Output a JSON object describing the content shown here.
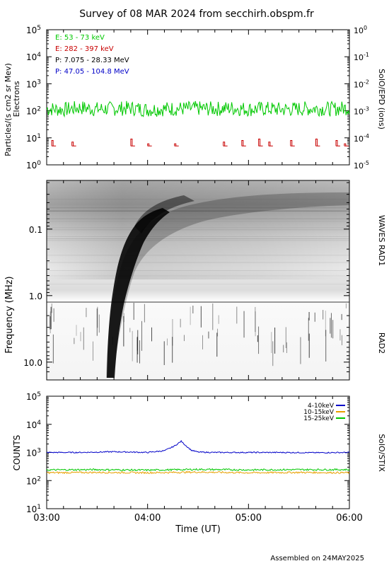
{
  "title": "Survey of 08 MAR 2024 from secchirh.obspm.fr",
  "footer": "Assembled on 24MAY2025",
  "chart_data": [
    {
      "id": "epd",
      "type": "line",
      "ylabel_left": "Particles/(s cm2 sr Mev)",
      "ylabel_left2": "Electrons",
      "ylabel_right": "SolO/EPD (ions)",
      "yscale": "log",
      "ylim_left": [
        1,
        100000
      ],
      "ylim_right": [
        1e-05,
        10
      ],
      "yticks_left": [
        "10^0",
        "10^1",
        "10^2",
        "10^3",
        "10^4",
        "10^5"
      ],
      "yticks_right": [
        "10^-5",
        "10^-4",
        "10^-3",
        "10^-2",
        "10^-1",
        "10^0"
      ],
      "xlim": [
        "03:00",
        "06:00"
      ],
      "legend": [
        {
          "label": "E: 53 - 73 keV",
          "color": "#00c800"
        },
        {
          "label": "E: 282 - 397 keV",
          "color": "#c80000"
        },
        {
          "label": "P: 7.075 - 28.33 MeV",
          "color": "#000000"
        },
        {
          "label": "P: 47.05 - 104.8 MeV",
          "color": "#0000c8"
        }
      ],
      "series": [
        {
          "name": "E: 53 - 73 keV",
          "color": "#00c800",
          "x_minutes": [
            0,
            10,
            20,
            30,
            40,
            50,
            60,
            70,
            80,
            90,
            100,
            110,
            120,
            130,
            140,
            150,
            160,
            170,
            180
          ],
          "y": [
            120,
            110,
            130,
            115,
            120,
            125,
            110,
            118,
            120,
            122,
            118,
            125,
            115,
            120,
            112,
            118,
            122,
            116,
            130
          ]
        },
        {
          "name": "E: 282 - 397 keV",
          "color": "#c80000",
          "x_minutes": [
            3,
            15,
            50,
            60,
            76,
            105,
            116,
            126,
            132,
            145,
            160,
            172,
            177
          ],
          "y": [
            8,
            7,
            9,
            6,
            6,
            7,
            8,
            9,
            7,
            8,
            9,
            8,
            6
          ]
        }
      ]
    },
    {
      "id": "waves",
      "type": "heatmap",
      "ylabel": "Frequency (MHz)",
      "label_top": "WAVES RAD1",
      "label_bottom": "RAD2",
      "yscale": "log",
      "ylim": [
        0.016,
        16
      ],
      "yticks": [
        "0.1",
        "1.0",
        "10.0"
      ],
      "xlim": [
        "03:00",
        "06:00"
      ]
    },
    {
      "id": "stix",
      "type": "line",
      "ylabel": "COUNTS",
      "ylabel_right": "SolO/STIX",
      "xlabel": "Time (UT)",
      "yscale": "log",
      "ylim": [
        10,
        100000
      ],
      "yticks": [
        "10^1",
        "10^2",
        "10^3",
        "10^4",
        "10^5"
      ],
      "xticks": [
        "03:00",
        "04:00",
        "05:00",
        "06:00"
      ],
      "series": [
        {
          "name": "4-10keV",
          "color": "#0000c8",
          "x_minutes": [
            0,
            20,
            40,
            60,
            70,
            76,
            80,
            83,
            86,
            90,
            100,
            120,
            140,
            160,
            180
          ],
          "y": [
            1000,
            1000,
            1060,
            1000,
            1150,
            1700,
            2500,
            1700,
            1200,
            1030,
            1000,
            1000,
            1000,
            980,
            1000
          ]
        },
        {
          "name": "10-15keV",
          "color": "#e8a000",
          "x_minutes": [
            0,
            30,
            60,
            90,
            120,
            150,
            180
          ],
          "y": [
            190,
            195,
            190,
            200,
            190,
            195,
            190
          ]
        },
        {
          "name": "15-25keV",
          "color": "#00c800",
          "x_minutes": [
            0,
            30,
            60,
            90,
            120,
            150,
            180
          ],
          "y": [
            240,
            245,
            235,
            250,
            240,
            245,
            245
          ]
        }
      ],
      "legend": [
        {
          "label": "4-10keV",
          "color": "#0000c8"
        },
        {
          "label": "10-15keV",
          "color": "#e8a000"
        },
        {
          "label": "15-25keV",
          "color": "#00c800"
        }
      ]
    }
  ]
}
